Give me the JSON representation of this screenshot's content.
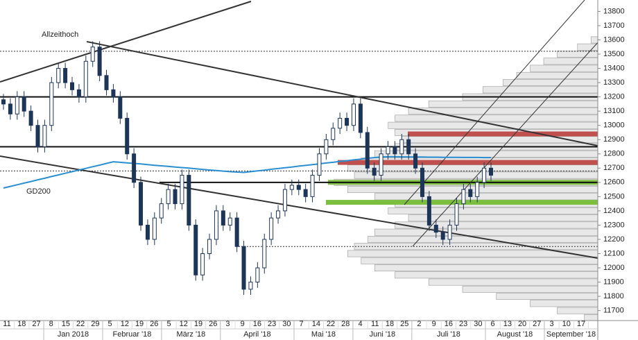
{
  "chart_data": {
    "type": "candlestick",
    "ylim": [
      11630,
      13880
    ],
    "yticks": [
      11700,
      11800,
      11900,
      12000,
      12100,
      12200,
      12300,
      12400,
      12500,
      12600,
      12700,
      12800,
      12900,
      13000,
      13100,
      13200,
      13300,
      13400,
      13500,
      13600,
      13700,
      13800
    ],
    "day_labels": [
      "11",
      "18",
      "27",
      "8",
      "15",
      "22",
      "29",
      "5",
      "12",
      "19",
      "26",
      "5",
      "12",
      "19",
      "26",
      "3",
      "9",
      "16",
      "23",
      "30",
      "7",
      "14",
      "22",
      "28",
      "4",
      "11",
      "18",
      "25",
      "2",
      "9",
      "16",
      "23",
      "30",
      "6",
      "13",
      "20",
      "27",
      "3",
      "10",
      "17"
    ],
    "month_labels": [
      "Jan 2018",
      "Februar '18",
      "März '18",
      "April '18",
      "Mai '18",
      "Juni '18",
      "Juli '18",
      "August '18",
      "September '18"
    ],
    "annotations": {
      "high": "Allzeithoch",
      "ma": "GD200"
    },
    "candles": {
      "open": [
        13180,
        13150,
        13080,
        13200,
        13100,
        13000,
        12850,
        13000,
        13300,
        13400,
        13300,
        13250,
        13200,
        13450,
        13550,
        13350,
        13250,
        13200,
        13050,
        12800,
        12600,
        12300,
        12200,
        12350,
        12450,
        12550,
        12450,
        12650,
        12300,
        11950,
        12100,
        12200,
        12400,
        12300,
        12350,
        12150,
        11850,
        11900,
        12000,
        12200,
        12350,
        12400,
        12550,
        12580,
        12550,
        12500,
        12650,
        12800,
        12900,
        12980,
        13050,
        13000,
        13150,
        12950,
        12700,
        12650,
        12800,
        12850,
        12800,
        12900,
        12800,
        12700,
        12500,
        12300,
        12250,
        12200,
        12300,
        12450,
        12550,
        12500,
        12600,
        12700
      ],
      "high": [
        13220,
        13190,
        13240,
        13240,
        13140,
        13040,
        13040,
        13340,
        13440,
        13440,
        13340,
        13290,
        13490,
        13590,
        13590,
        13390,
        13290,
        13240,
        13090,
        12840,
        12640,
        12340,
        12390,
        12490,
        12590,
        12590,
        12690,
        12690,
        12340,
        12140,
        12240,
        12440,
        12440,
        12390,
        12390,
        12190,
        11940,
        12040,
        12240,
        12390,
        12440,
        12590,
        12620,
        12620,
        12590,
        12690,
        12840,
        12940,
        13020,
        13090,
        13090,
        13190,
        13190,
        12990,
        12740,
        12840,
        12890,
        12890,
        12940,
        12940,
        12840,
        12740,
        12540,
        12340,
        12290,
        12340,
        12490,
        12590,
        12590,
        12640,
        12740,
        12740
      ],
      "low": [
        13110,
        13040,
        13040,
        13060,
        12960,
        12810,
        12810,
        12960,
        13260,
        13260,
        13210,
        13160,
        13160,
        13410,
        13310,
        13210,
        13160,
        13010,
        12760,
        12560,
        12260,
        12160,
        12160,
        12310,
        12410,
        12410,
        12410,
        12260,
        11910,
        11910,
        12060,
        12160,
        12260,
        12260,
        12110,
        11810,
        11810,
        11860,
        11960,
        12160,
        12310,
        12360,
        12510,
        12510,
        12460,
        12460,
        12610,
        12760,
        12860,
        12940,
        12960,
        12960,
        12910,
        12660,
        12610,
        12610,
        12760,
        12760,
        12760,
        12760,
        12660,
        12460,
        12260,
        12210,
        12160,
        12160,
        12260,
        12410,
        12460,
        12460,
        12560,
        12610
      ],
      "close": [
        13150,
        13080,
        13200,
        13100,
        13000,
        12850,
        13000,
        13300,
        13400,
        13300,
        13250,
        13200,
        13450,
        13550,
        13350,
        13250,
        13200,
        13050,
        12800,
        12600,
        12300,
        12200,
        12350,
        12450,
        12550,
        12450,
        12650,
        12300,
        11950,
        12100,
        12200,
        12400,
        12300,
        12350,
        12150,
        11850,
        11900,
        12000,
        12200,
        12350,
        12400,
        12550,
        12580,
        12550,
        12500,
        12650,
        12800,
        12900,
        12980,
        13050,
        13000,
        13150,
        12950,
        12700,
        12650,
        12800,
        12850,
        12800,
        12900,
        12800,
        12700,
        12500,
        12300,
        12250,
        12200,
        12300,
        12450,
        12550,
        12500,
        12600,
        12700,
        12650
      ],
      "up_color": "#ffffff",
      "down_color": "#1d3557"
    },
    "ma": {
      "color": "#2a8fd0",
      "values": [
        12560,
        12572,
        12583,
        12595,
        12606,
        12618,
        12629,
        12641,
        12652,
        12664,
        12675,
        12687,
        12698,
        12710,
        12721,
        12733,
        12745,
        12741,
        12737,
        12733,
        12729,
        12725,
        12720,
        12716,
        12712,
        12708,
        12704,
        12700,
        12695,
        12691,
        12687,
        12683,
        12679,
        12675,
        12672,
        12670,
        12675,
        12681,
        12686,
        12692,
        12697,
        12703,
        12708,
        12714,
        12719,
        12725,
        12730,
        12736,
        12741,
        12747,
        12752,
        12758,
        12763,
        12769,
        12774,
        12778,
        12780,
        12780,
        12779,
        12779,
        12778,
        12778,
        12777,
        12777,
        12776,
        12776,
        12776,
        12775,
        12775,
        12775,
        12774,
        12774
      ]
    },
    "profile": {
      "xlim": [
        0,
        400
      ],
      "color": "#e8e8e8",
      "levels": [
        11650,
        11700,
        11750,
        11800,
        11850,
        11900,
        11950,
        12000,
        12050,
        12100,
        12150,
        12200,
        12250,
        12300,
        12350,
        12400,
        12450,
        12500,
        12550,
        12600,
        12650,
        12700,
        12750,
        12800,
        12850,
        12900,
        12950,
        13000,
        13050,
        13100,
        13150,
        13200,
        13250,
        13300,
        13350,
        13400,
        13450,
        13500,
        13550,
        13600
      ],
      "values": [
        20,
        60,
        100,
        150,
        200,
        250,
        300,
        330,
        350,
        370,
        360,
        340,
        330,
        300,
        280,
        310,
        300,
        330,
        370,
        390,
        360,
        370,
        350,
        330,
        300,
        290,
        300,
        310,
        300,
        280,
        250,
        200,
        170,
        140,
        120,
        100,
        80,
        60,
        30,
        10
      ]
    },
    "hlines": [
      13200,
      12850,
      12600
    ],
    "dashed_lines": [
      13520,
      12680,
      12150
    ],
    "zones": [
      {
        "value": 12940,
        "color": "#c0504d"
      },
      {
        "value": 12740,
        "color": "#c0504d"
      },
      {
        "value": 12600,
        "color": "#7cbf3f"
      },
      {
        "value": 12460,
        "color": "#7cbf3f"
      }
    ]
  }
}
